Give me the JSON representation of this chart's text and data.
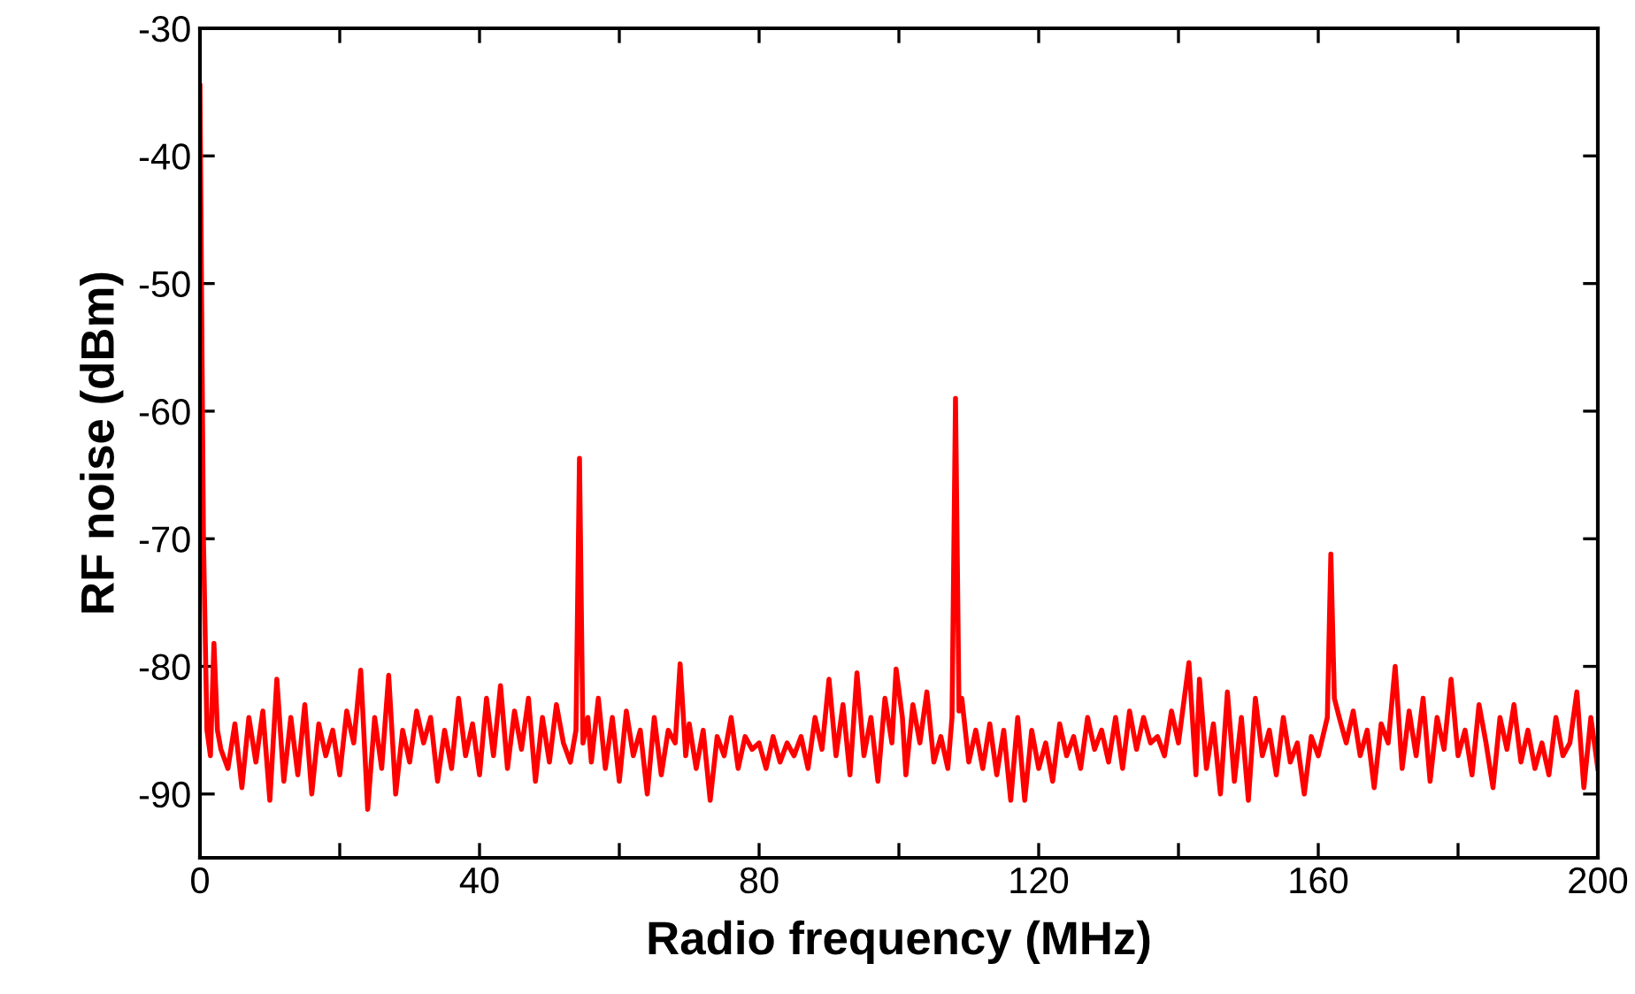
{
  "chart_data": {
    "type": "line",
    "xlabel": "Radio frequency (MHz)",
    "ylabel": "RF noise (dBm)",
    "xlim": [
      0,
      200
    ],
    "ylim": [
      -95,
      -30
    ],
    "xticks": [
      0,
      {
        "value": 20,
        "label": null
      },
      40,
      {
        "value": 60,
        "label": null
      },
      80,
      {
        "value": 100,
        "label": null
      },
      120,
      {
        "value": 140,
        "label": null
      },
      160,
      {
        "value": 180,
        "label": null
      },
      200
    ],
    "yticks": [
      -90,
      -80,
      -70,
      -60,
      -50,
      -40,
      -30
    ],
    "grid": false,
    "legend": false,
    "marker": "none",
    "line_style": "solid",
    "series": [
      {
        "color": "#ff0000",
        "x": [
          0,
          0.5,
          1,
          1.5,
          2,
          2.5,
          3,
          4,
          5,
          6,
          7,
          8,
          9,
          10,
          11,
          12,
          13,
          14,
          15,
          16,
          17,
          18,
          19,
          20,
          21,
          22,
          23,
          24,
          25,
          26,
          27,
          28,
          29,
          30,
          31,
          32,
          33,
          34,
          35,
          36,
          37,
          38,
          39,
          40,
          41,
          42,
          43,
          44,
          45,
          46,
          47,
          48,
          49,
          50,
          51,
          52,
          53,
          53.8,
          54.3,
          54.8,
          55.5,
          56,
          57,
          58,
          59,
          60,
          61,
          62,
          63,
          64,
          65,
          66,
          67,
          68,
          68.7,
          69.5,
          70,
          71,
          72,
          73,
          74,
          75,
          76,
          77,
          78,
          79,
          80,
          81,
          82,
          83,
          84,
          85,
          86,
          87,
          88,
          89,
          90,
          91,
          92,
          93,
          94,
          95,
          96,
          97,
          98,
          99,
          99.6,
          100.5,
          101,
          102,
          103,
          104,
          105,
          106,
          107,
          107.6,
          108.1,
          108.6,
          109,
          110,
          111,
          112,
          113,
          114,
          115,
          116,
          117,
          118,
          119,
          120,
          121,
          122,
          123,
          124,
          125,
          126,
          127,
          128,
          129,
          130,
          131,
          132,
          133,
          134,
          135,
          136,
          137,
          138,
          139,
          140,
          141.5,
          142.5,
          143,
          144,
          145,
          146,
          147,
          148,
          149,
          150,
          151,
          152,
          153,
          154,
          155,
          156,
          157,
          158,
          159,
          160,
          161.3,
          161.8,
          162.3,
          163,
          164,
          165,
          166,
          167,
          168,
          169,
          170,
          171,
          172,
          173,
          174,
          175,
          176,
          177,
          178,
          179,
          180,
          181,
          182,
          183,
          184,
          185,
          186,
          187,
          188,
          189,
          190,
          191,
          192,
          193,
          194,
          195,
          196,
          197,
          198,
          199,
          200
        ],
        "values": [
          -34.5,
          -70,
          -85,
          -87,
          -78.2,
          -85,
          -86.5,
          -88,
          -84.5,
          -89.5,
          -84,
          -87.5,
          -83.5,
          -90.5,
          -81,
          -89,
          -84,
          -88.5,
          -83,
          -90,
          -84.5,
          -87,
          -85,
          -88.5,
          -83.5,
          -86,
          -80.3,
          -91.2,
          -84,
          -88,
          -80.7,
          -90,
          -85,
          -87.5,
          -83.5,
          -86,
          -84,
          -89,
          -85,
          -88,
          -82.5,
          -87,
          -84.5,
          -88.5,
          -82.5,
          -87,
          -81.5,
          -88,
          -83.5,
          -86.5,
          -82.5,
          -89,
          -84,
          -87.5,
          -83,
          -86,
          -87.5,
          -85,
          -63.7,
          -86,
          -84,
          -87.5,
          -82.5,
          -88,
          -84,
          -89,
          -83.5,
          -87,
          -85,
          -90,
          -84,
          -88.5,
          -85,
          -86,
          -79.8,
          -87,
          -84.5,
          -88,
          -85,
          -90.5,
          -85.5,
          -87,
          -84,
          -88,
          -85.5,
          -86.5,
          -86,
          -88,
          -85.5,
          -87.5,
          -86,
          -87,
          -85.5,
          -88,
          -84,
          -86.5,
          -81,
          -87,
          -83,
          -88.5,
          -80.5,
          -87,
          -84,
          -89,
          -82.5,
          -86,
          -80.2,
          -84,
          -88.5,
          -83,
          -86,
          -82,
          -87.5,
          -85.5,
          -88,
          -84,
          -59,
          -83.5,
          -82.5,
          -87.5,
          -85,
          -88,
          -84.5,
          -88.5,
          -85,
          -90.5,
          -84,
          -90.5,
          -85,
          -88,
          -86,
          -89,
          -84.5,
          -87,
          -85.5,
          -88,
          -84,
          -86.5,
          -85,
          -87.5,
          -84,
          -88,
          -83.5,
          -86.5,
          -84,
          -86,
          -85.5,
          -87,
          -83.5,
          -86,
          -79.7,
          -88.5,
          -81,
          -88,
          -84.5,
          -90,
          -82,
          -89,
          -84,
          -90.5,
          -82.5,
          -87,
          -85,
          -88.5,
          -84,
          -87.5,
          -86,
          -90,
          -85.5,
          -87,
          -84,
          -71.2,
          -82.5,
          -84,
          -86,
          -83.5,
          -87,
          -85,
          -89.5,
          -84.5,
          -86,
          -80,
          -88,
          -83.5,
          -87,
          -82.5,
          -89,
          -84,
          -86.5,
          -81,
          -87,
          -85,
          -88.5,
          -83,
          -86,
          -89.5,
          -84,
          -86.5,
          -83,
          -87.5,
          -85,
          -88,
          -86,
          -88.5,
          -84,
          -87,
          -86,
          -82,
          -89.5,
          -84,
          -88
        ]
      }
    ]
  }
}
